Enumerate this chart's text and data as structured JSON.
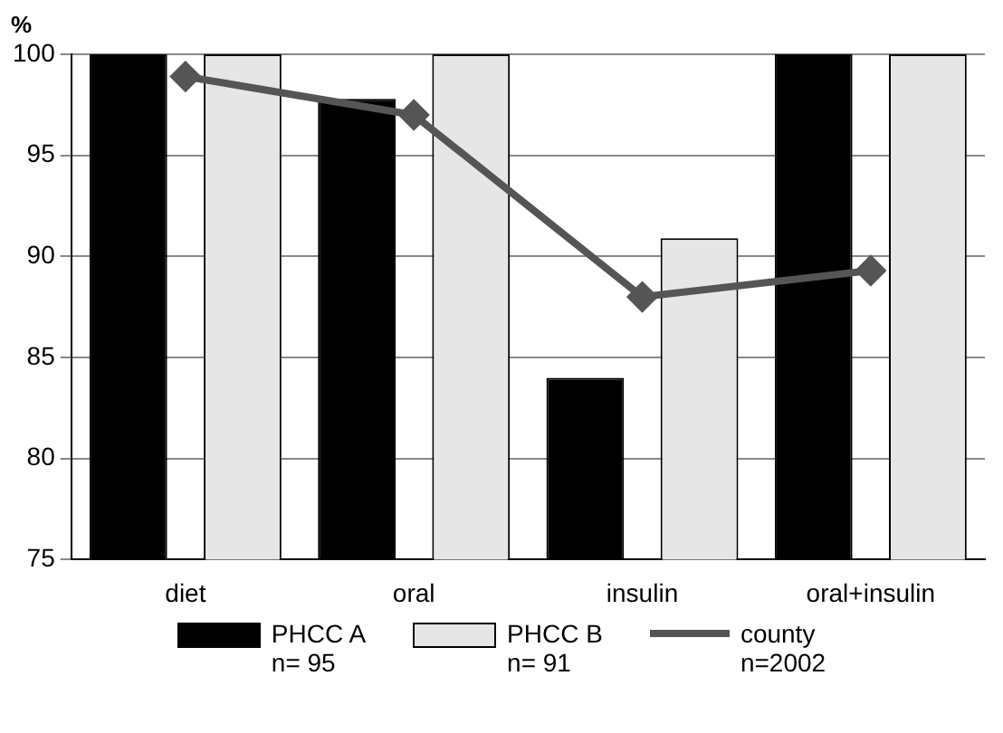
{
  "chart_data": {
    "type": "bar",
    "ylabel": "%",
    "categories": [
      "diet",
      "oral",
      "insulin",
      "oral+insulin"
    ],
    "series": [
      {
        "name": "PHCC A\nn= 95",
        "color": "#000000",
        "values": [
          100,
          97.8,
          84,
          100
        ]
      },
      {
        "name": "PHCC B\nn= 91",
        "color": "#e6e6e6",
        "values": [
          100,
          100,
          90.9,
          100
        ]
      },
      {
        "name": "county\nn=2002",
        "type": "line",
        "color": "#555555",
        "values": [
          98.9,
          97,
          88,
          89.3
        ]
      }
    ],
    "ylim": [
      75,
      100
    ],
    "yticks": [
      75,
      80,
      85,
      90,
      95,
      100
    ],
    "grid": "y",
    "legend": "bottom",
    "marker": "diamond"
  }
}
